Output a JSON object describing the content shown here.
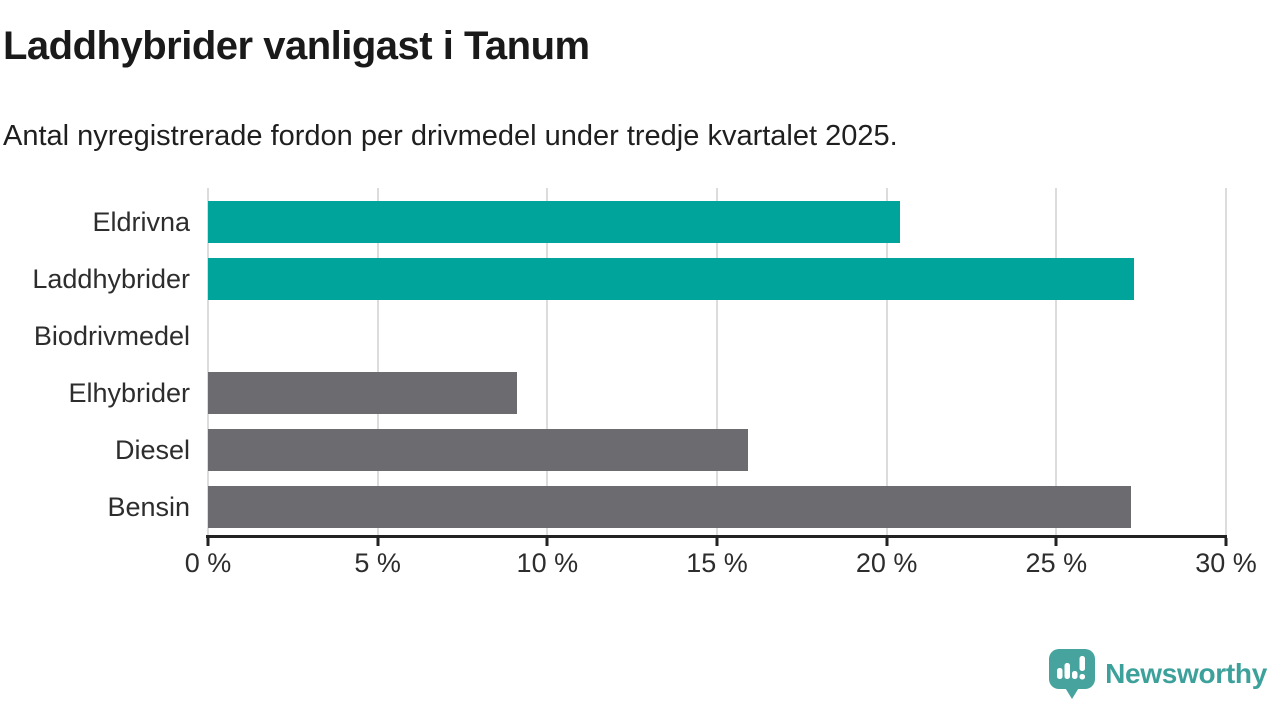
{
  "chart_data": {
    "type": "bar",
    "orientation": "horizontal",
    "title": "Laddhybrider vanligast i Tanum",
    "subtitle": "Antal nyregistrerade fordon per drivmedel under tredje kvartalet 2025.",
    "unit": "%",
    "xlim": [
      0,
      30
    ],
    "grid": true,
    "categories": [
      "Eldrivna",
      "Laddhybrider",
      "Biodrivmedel",
      "Elhybrider",
      "Diesel",
      "Bensin"
    ],
    "bars": [
      {
        "label": "Eldrivna",
        "value": 20.4,
        "highlight": true
      },
      {
        "label": "Laddhybrider",
        "value": 27.3,
        "highlight": true
      },
      {
        "label": "Biodrivmedel",
        "value": 0,
        "highlight": true
      },
      {
        "label": "Elhybrider",
        "value": 9.1,
        "highlight": false
      },
      {
        "label": "Diesel",
        "value": 15.9,
        "highlight": false
      },
      {
        "label": "Bensin",
        "value": 27.2,
        "highlight": false
      }
    ],
    "x_ticks": [
      {
        "label": "0 %",
        "value": 0
      },
      {
        "label": "5 %",
        "value": 5
      },
      {
        "label": "10 %",
        "value": 10
      },
      {
        "label": "15 %",
        "value": 15
      },
      {
        "label": "20 %",
        "value": 20
      },
      {
        "label": "25 %",
        "value": 25
      },
      {
        "label": "30 %",
        "value": 30
      }
    ]
  },
  "colors": {
    "highlight": "#00a49b",
    "neutral": "#6b6b70",
    "gridline": "#dcdcdc",
    "axis": "#222222",
    "brand": "#3da19b",
    "brand_icon": "#46a39e"
  },
  "footer": {
    "brand": "Newsworthy"
  }
}
